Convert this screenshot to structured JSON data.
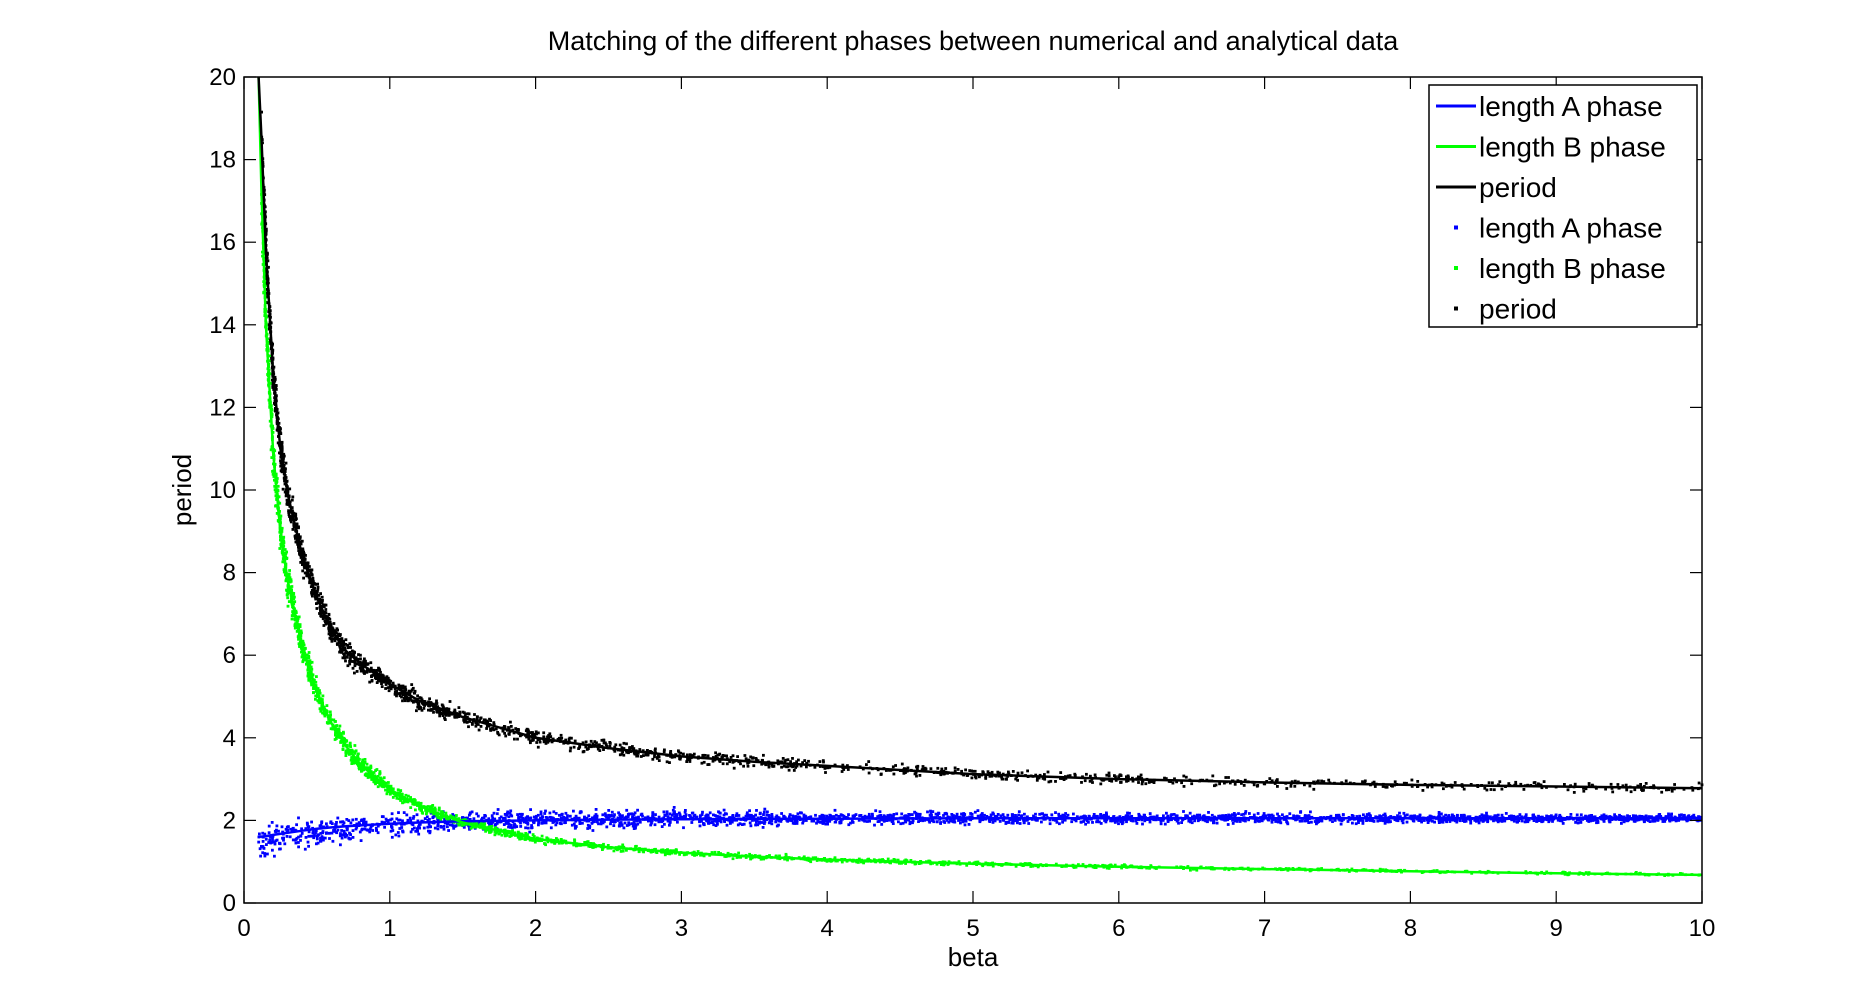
{
  "chart_data": {
    "type": "scatter",
    "title": "Matching of the different phases between numerical and analytical data",
    "xlabel": "beta",
    "ylabel": "period",
    "xlim": [
      0,
      10
    ],
    "ylim": [
      0,
      20
    ],
    "xticks": [
      0,
      1,
      2,
      3,
      4,
      5,
      6,
      7,
      8,
      9,
      10
    ],
    "xtick_labels": [
      "0",
      "1",
      "2",
      "3",
      "4",
      "5",
      "6",
      "7",
      "8",
      "9",
      "10"
    ],
    "yticks": [
      0,
      2,
      4,
      6,
      8,
      10,
      12,
      14,
      16,
      18,
      20
    ],
    "ytick_labels": [
      "0",
      "2",
      "4",
      "6",
      "8",
      "10",
      "12",
      "14",
      "16",
      "18",
      "20"
    ],
    "grid": false,
    "legend_position": "top-right",
    "legend": [
      {
        "label": "length A phase",
        "style": "line",
        "color": "#0000ff"
      },
      {
        "label": "length B phase",
        "style": "line",
        "color": "#00ff00"
      },
      {
        "label": "period",
        "style": "line",
        "color": "#000000"
      },
      {
        "label": "length A phase",
        "style": "marker",
        "color": "#0000ff"
      },
      {
        "label": "length B phase",
        "style": "marker",
        "color": "#00ff00"
      },
      {
        "label": "period",
        "style": "marker",
        "color": "#000000"
      }
    ],
    "series": [
      {
        "name": "length A phase",
        "kind": "line",
        "color": "#0000ff",
        "x": [
          0.1,
          0.15,
          0.2,
          0.3,
          0.4,
          0.5,
          0.6,
          0.7,
          0.8,
          1.0,
          1.2,
          1.5,
          2.0,
          2.5,
          3.0,
          4.0,
          5.0,
          6.0,
          7.0,
          8.0,
          9.0,
          10.0
        ],
        "y": [
          1.6,
          1.62,
          1.65,
          1.7,
          1.75,
          1.8,
          1.83,
          1.86,
          1.88,
          1.92,
          1.95,
          1.98,
          2.0,
          2.02,
          2.03,
          2.04,
          2.05,
          2.05,
          2.05,
          2.05,
          2.05,
          2.05
        ]
      },
      {
        "name": "length B phase",
        "kind": "line",
        "color": "#00ff00",
        "x": [
          0.1,
          0.12,
          0.15,
          0.2,
          0.25,
          0.3,
          0.4,
          0.5,
          0.6,
          0.7,
          0.8,
          1.0,
          1.2,
          1.5,
          2.0,
          2.5,
          3.0,
          3.5,
          4.0,
          5.0,
          6.0,
          7.0,
          8.0,
          9.0,
          10.0
        ],
        "y": [
          20.0,
          17.2,
          14.0,
          10.9,
          9.0,
          7.8,
          6.2,
          5.1,
          4.35,
          3.8,
          3.35,
          2.75,
          2.35,
          1.95,
          1.55,
          1.35,
          1.22,
          1.12,
          1.05,
          0.95,
          0.88,
          0.82,
          0.77,
          0.72,
          0.68
        ]
      },
      {
        "name": "period",
        "kind": "line",
        "color": "#000000",
        "x": [
          0.1,
          0.12,
          0.15,
          0.2,
          0.25,
          0.3,
          0.4,
          0.5,
          0.6,
          0.7,
          0.8,
          1.0,
          1.2,
          1.5,
          2.0,
          2.5,
          3.0,
          3.5,
          4.0,
          5.0,
          6.0,
          7.0,
          8.0,
          9.0,
          10.0
        ],
        "y": [
          20.0,
          18.5,
          15.8,
          12.8,
          11.0,
          9.9,
          8.4,
          7.4,
          6.6,
          6.1,
          5.8,
          5.3,
          4.9,
          4.5,
          4.0,
          3.75,
          3.55,
          3.42,
          3.32,
          3.12,
          3.0,
          2.92,
          2.86,
          2.82,
          2.78
        ]
      },
      {
        "name": "length A phase",
        "kind": "scatter",
        "color": "#0000ff",
        "x_range": [
          0.1,
          10.0
        ],
        "y_center_x": [
          0.1,
          0.5,
          1.0,
          2.0,
          3.0,
          5.0,
          10.0
        ],
        "y_center": [
          1.5,
          1.7,
          1.9,
          2.0,
          2.05,
          2.05,
          2.05
        ],
        "spread": [
          0.6,
          0.55,
          0.45,
          0.35,
          0.3,
          0.22,
          0.15
        ]
      },
      {
        "name": "length B phase",
        "kind": "scatter",
        "color": "#00ff00",
        "x_range": [
          0.12,
          10.0
        ],
        "spread_ratio": 0.09
      },
      {
        "name": "period",
        "kind": "scatter",
        "color": "#000000",
        "x_range": [
          0.12,
          10.0
        ],
        "spread_ratio": 0.07
      }
    ]
  }
}
